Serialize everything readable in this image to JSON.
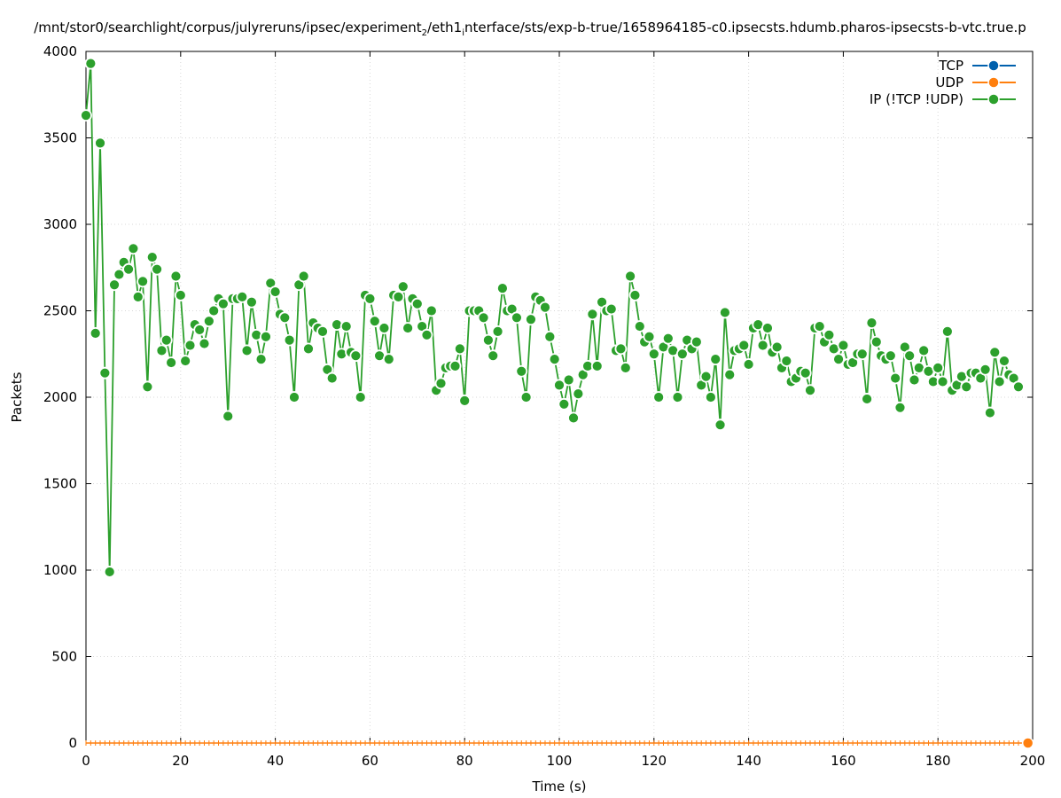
{
  "chart_data": {
    "type": "line",
    "title": "/mnt/stor0/searchlight/corpus/julyreruns/ipsec/experiment",
    "title_sub": "2",
    "title_mid": "/eth1",
    "title_sub2": "i",
    "title_tail": "nterface/sts/exp-b-true/1658964185-c0.ipsecsts.hdumb.pharos-ipsecsts-b-vtc.true.p",
    "xlabel": "Time (s)",
    "ylabel": "Packets",
    "xlim": [
      0,
      200
    ],
    "ylim": [
      0,
      4000
    ],
    "x_ticks": [
      "0",
      "20",
      "40",
      "60",
      "80",
      "100",
      "120",
      "140",
      "160",
      "180",
      "200"
    ],
    "y_ticks": [
      "0",
      "500",
      "1000",
      "1500",
      "2000",
      "2500",
      "3000",
      "3500",
      "4000"
    ],
    "grid": true,
    "legend_position": "top-right",
    "series": [
      {
        "name": "TCP",
        "color": "#0060ad",
        "values": []
      },
      {
        "name": "UDP",
        "color": "#ff7f0e",
        "values": [
          0
        ]
      },
      {
        "name": "IP (!TCP  !UDP)",
        "color": "#2ca02c",
        "values": [
          3630,
          3930,
          2370,
          3470,
          2140,
          990,
          2650,
          2710,
          2780,
          2740,
          2860,
          2580,
          2670,
          2060,
          2810,
          2740,
          2270,
          2330,
          2200,
          2700,
          2590,
          2210,
          2300,
          2420,
          2390,
          2310,
          2440,
          2500,
          2570,
          2540,
          1890,
          2570,
          2570,
          2580,
          2270,
          2550,
          2360,
          2220,
          2350,
          2660,
          2610,
          2480,
          2460,
          2330,
          2000,
          2650,
          2700,
          2280,
          2430,
          2400,
          2380,
          2160,
          2110,
          2420,
          2250,
          2410,
          2260,
          2240,
          2000,
          2590,
          2570,
          2440,
          2240,
          2400,
          2220,
          2590,
          2580,
          2640,
          2400,
          2570,
          2540,
          2410,
          2360,
          2500,
          2040,
          2080,
          2170,
          2180,
          2180,
          2280,
          1980,
          2500,
          2500,
          2500,
          2460,
          2330,
          2240,
          2380,
          2630,
          2500,
          2510,
          2460,
          2150,
          2000,
          2450,
          2580,
          2560,
          2520,
          2350,
          2220,
          2070,
          1960,
          2100,
          1880,
          2020,
          2130,
          2180,
          2480,
          2180,
          2550,
          2500,
          2510,
          2270,
          2280,
          2170,
          2700,
          2590,
          2410,
          2320,
          2350,
          2250,
          2000,
          2290,
          2340,
          2270,
          2000,
          2250,
          2330,
          2280,
          2320,
          2070,
          2120,
          2000,
          2220,
          1840,
          2490,
          2130,
          2270,
          2280,
          2300,
          2190,
          2400,
          2420,
          2300,
          2400,
          2260,
          2290,
          2170,
          2210,
          2090,
          2110,
          2150,
          2140,
          2040,
          2400,
          2410,
          2320,
          2360,
          2280,
          2220,
          2300,
          2190,
          2200,
          2250,
          2250,
          1990,
          2430,
          2320,
          2240,
          2220,
          2240,
          2110,
          1940,
          2290,
          2240,
          2100,
          2170,
          2270,
          2150,
          2090,
          2170,
          2090,
          2380,
          2040,
          2070,
          2120,
          2060,
          2140,
          2140,
          2110,
          2160,
          1910,
          2260,
          2090,
          2210,
          2130,
          2110,
          2060
        ]
      }
    ]
  }
}
